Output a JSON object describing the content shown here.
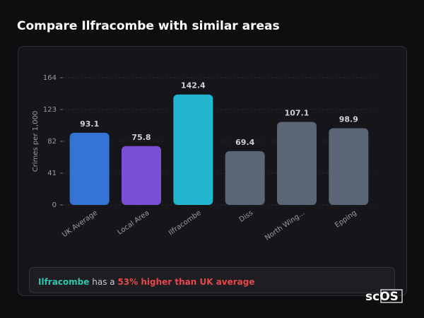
{
  "chart_data": {
    "type": "bar",
    "title": "Compare Ilfracombe with similar areas",
    "ylabel": "Crimes per 1,000",
    "categories": [
      "UK Average",
      "Local Area",
      "Ilfracombe",
      "Diss",
      "North Wing...",
      "Epping"
    ],
    "values": [
      93.1,
      75.8,
      142.4,
      69.4,
      107.1,
      98.9
    ],
    "colors": [
      "#3474d4",
      "#7a4fd5",
      "#22b6cf",
      "#5a6576",
      "#5a6576",
      "#5a6576"
    ],
    "ylim": [
      0,
      164
    ],
    "yticks": [
      0,
      41,
      82,
      123,
      164
    ],
    "grid": true,
    "callout": [
      "Ilfracombe",
      "has a",
      "53% higher than UK average"
    ],
    "logo": "scOS"
  }
}
